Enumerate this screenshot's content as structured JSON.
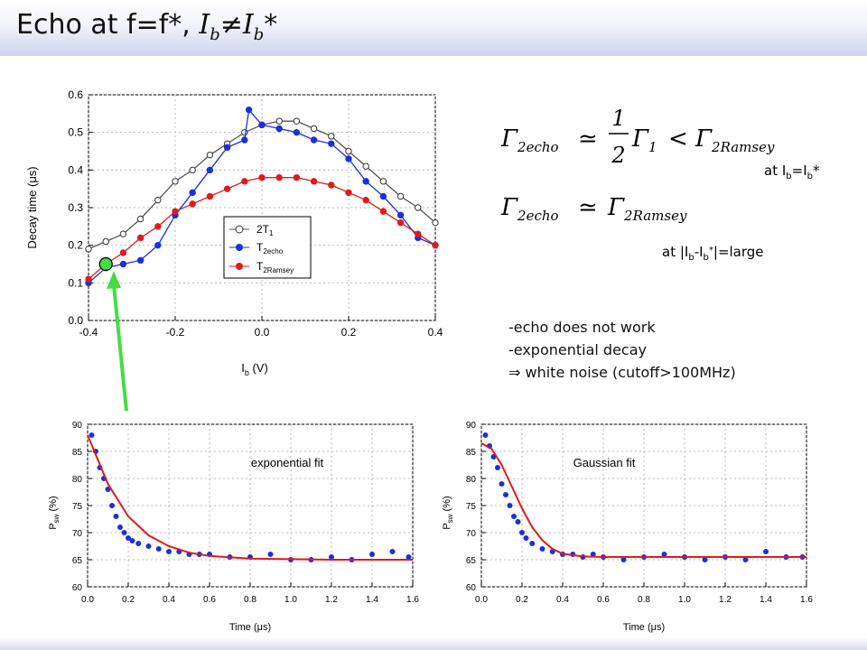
{
  "title": {
    "main": "Echo at f=f*, ",
    "ib": "I",
    "sub": "b",
    "neq": "≠I",
    "sub2": "b",
    "star": "*"
  },
  "equations": {
    "eq1": {
      "lhs": "Γ",
      "lhs_sub": "2echo",
      "rel": "≃",
      "num": "1",
      "den": "2",
      "g1": "Γ",
      "g1_sub": "1",
      "lt": "<",
      "rhs": "Γ",
      "rhs_sub": "2Ramsey"
    },
    "eq1_note": {
      "a": "at I",
      "b": "b",
      "c": "=I",
      "d": "b",
      "e": "*"
    },
    "eq2": {
      "lhs": "Γ",
      "lhs_sub": "2echo",
      "rel": "≃",
      "rhs": "Γ",
      "rhs_sub": "2Ramsey"
    },
    "eq2_note": {
      "a": "at |I",
      "b": "b",
      "c": "-I",
      "d": "b",
      "e": "*",
      "f": "|=large"
    }
  },
  "notes": [
    "-echo does not work",
    "-exponential decay",
    "⇒  white noise (cutoff>100MHz)"
  ],
  "colors": {
    "t1": "#555555",
    "echo": "#1a2fe0",
    "ramsey": "#e01a1a",
    "marker": "#44dd44",
    "arrow": "#44dd44"
  },
  "chart_data": [
    {
      "type": "scatter",
      "ylabel": "Decay time (μs)",
      "xlabel": "I",
      "xlabel_sub": "b",
      "xlabel_unit": " (V)",
      "xlim": [
        -0.4,
        0.4
      ],
      "ylim": [
        0.0,
        0.6
      ],
      "xticks": [
        "-0.4",
        "-0.2",
        "0.0",
        "0.2",
        "0.4"
      ],
      "yticks": [
        "0.0",
        "0.1",
        "0.2",
        "0.3",
        "0.4",
        "0.5",
        "0.6"
      ],
      "legend": "center",
      "legend_items": [
        {
          "name": "2T",
          "sub": "1"
        },
        {
          "name": "T",
          "sub": "2echo"
        },
        {
          "name": "T",
          "sub": "2Ramsey"
        }
      ],
      "series": [
        {
          "name": "2T1",
          "x": [
            -0.4,
            -0.36,
            -0.32,
            -0.28,
            -0.24,
            -0.2,
            -0.16,
            -0.12,
            -0.08,
            -0.04,
            0.0,
            0.04,
            0.08,
            0.12,
            0.16,
            0.2,
            0.24,
            0.28,
            0.32,
            0.36,
            0.4
          ],
          "y": [
            0.19,
            0.21,
            0.23,
            0.27,
            0.32,
            0.37,
            0.4,
            0.44,
            0.47,
            0.5,
            0.52,
            0.53,
            0.53,
            0.51,
            0.49,
            0.45,
            0.41,
            0.37,
            0.33,
            0.3,
            0.26
          ]
        },
        {
          "name": "T2echo",
          "x": [
            -0.4,
            -0.36,
            -0.32,
            -0.28,
            -0.24,
            -0.2,
            -0.16,
            -0.12,
            -0.08,
            -0.04,
            -0.03,
            0.0,
            0.04,
            0.08,
            0.12,
            0.16,
            0.2,
            0.24,
            0.28,
            0.32,
            0.36,
            0.4
          ],
          "y": [
            0.1,
            0.14,
            0.15,
            0.16,
            0.2,
            0.28,
            0.34,
            0.4,
            0.46,
            0.48,
            0.56,
            0.52,
            0.51,
            0.5,
            0.48,
            0.47,
            0.43,
            0.37,
            0.33,
            0.28,
            0.22,
            0.2
          ]
        },
        {
          "name": "T2Ramsey",
          "x": [
            -0.4,
            -0.36,
            -0.32,
            -0.28,
            -0.24,
            -0.2,
            -0.16,
            -0.12,
            -0.08,
            -0.04,
            0.0,
            0.04,
            0.08,
            0.12,
            0.16,
            0.2,
            0.24,
            0.28,
            0.32,
            0.36,
            0.4
          ],
          "y": [
            0.11,
            0.15,
            0.18,
            0.22,
            0.25,
            0.29,
            0.31,
            0.33,
            0.35,
            0.37,
            0.38,
            0.38,
            0.38,
            0.37,
            0.36,
            0.34,
            0.32,
            0.29,
            0.26,
            0.23,
            0.2
          ]
        }
      ],
      "marker_point": {
        "x": -0.36,
        "y": 0.15
      }
    },
    {
      "type": "scatter",
      "annotation": "exponential fit",
      "ylabel": "P",
      "ylabel_sub": "sw",
      "ylabel_unit": " (%)",
      "xlabel": "Time (μs)",
      "xlim": [
        0.0,
        1.6
      ],
      "ylim": [
        60,
        90
      ],
      "xticks": [
        "0.0",
        "0.2",
        "0.4",
        "0.6",
        "0.8",
        "1.0",
        "1.2",
        "1.4",
        "1.6"
      ],
      "yticks": [
        "60",
        "65",
        "70",
        "75",
        "80",
        "85",
        "90"
      ],
      "points": {
        "x": [
          0.02,
          0.04,
          0.06,
          0.08,
          0.1,
          0.12,
          0.14,
          0.16,
          0.18,
          0.2,
          0.22,
          0.25,
          0.3,
          0.35,
          0.4,
          0.45,
          0.5,
          0.55,
          0.6,
          0.7,
          0.8,
          0.9,
          1.0,
          1.1,
          1.2,
          1.3,
          1.4,
          1.5,
          1.58
        ],
        "y": [
          88,
          85,
          82,
          80,
          78,
          75,
          73,
          71,
          70,
          69,
          68.5,
          68,
          67.5,
          67,
          66.5,
          66.5,
          66,
          66,
          66,
          65.5,
          65.5,
          66,
          65,
          65,
          65.5,
          65,
          66,
          66.5,
          65.5
        ]
      },
      "fit": {
        "x": [
          0.0,
          0.1,
          0.2,
          0.3,
          0.4,
          0.5,
          0.6,
          0.8,
          1.0,
          1.2,
          1.4,
          1.6
        ],
        "y": [
          88,
          79,
          73,
          69.5,
          67.5,
          66.3,
          65.7,
          65.2,
          65.1,
          65.0,
          65.0,
          65.0
        ]
      }
    },
    {
      "type": "scatter",
      "annotation": "Gaussian fit",
      "ylabel": "P",
      "ylabel_sub": "sw",
      "ylabel_unit": " (%)",
      "xlabel": "Time (μs)",
      "xlim": [
        0.0,
        1.6
      ],
      "ylim": [
        60,
        90
      ],
      "xticks": [
        "0.0",
        "0.2",
        "0.4",
        "0.6",
        "0.8",
        "1.0",
        "1.2",
        "1.4",
        "1.6"
      ],
      "yticks": [
        "60",
        "65",
        "70",
        "75",
        "80",
        "85",
        "90"
      ],
      "points": {
        "x": [
          0.02,
          0.04,
          0.06,
          0.08,
          0.1,
          0.12,
          0.14,
          0.16,
          0.18,
          0.2,
          0.22,
          0.25,
          0.3,
          0.35,
          0.4,
          0.45,
          0.5,
          0.55,
          0.6,
          0.7,
          0.8,
          0.9,
          1.0,
          1.1,
          1.2,
          1.3,
          1.4,
          1.5,
          1.58
        ],
        "y": [
          88,
          86,
          84,
          82,
          79,
          77,
          75,
          73,
          72,
          70,
          69,
          68,
          67,
          66.5,
          66,
          66,
          65.5,
          66,
          65.5,
          65,
          65.5,
          66,
          65.5,
          65,
          65.5,
          65,
          66.5,
          65.5,
          65.5
        ]
      },
      "fit": {
        "x": [
          0.0,
          0.05,
          0.1,
          0.15,
          0.2,
          0.25,
          0.3,
          0.35,
          0.4,
          0.5,
          0.6,
          0.8,
          1.0,
          1.2,
          1.4,
          1.6
        ],
        "y": [
          86.5,
          85.5,
          82.5,
          78.5,
          74.5,
          71,
          68.6,
          67,
          66.1,
          65.6,
          65.5,
          65.5,
          65.5,
          65.5,
          65.5,
          65.5
        ]
      }
    }
  ]
}
